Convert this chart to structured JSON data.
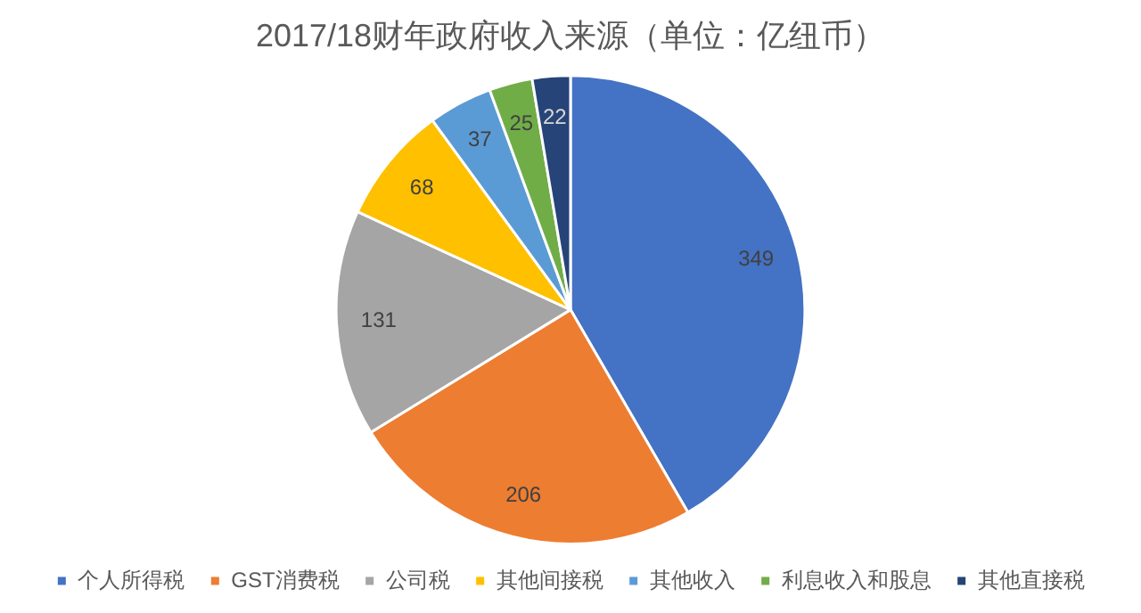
{
  "chart_data": {
    "type": "pie",
    "title": "2017/18财年政府收入来源（单位：亿纽币）",
    "categories": [
      "个人所得税",
      "GST消费税",
      "公司税",
      "其他间接税",
      "其他收入",
      "利息收入和股息",
      "其他直接税"
    ],
    "values": [
      349,
      206,
      131,
      68,
      37,
      25,
      22
    ],
    "colors": [
      "#4472c4",
      "#ed7d31",
      "#a5a5a5",
      "#ffc000",
      "#5b9bd5",
      "#70ad47",
      "#264478"
    ],
    "data_labels": true,
    "legend": "bottom"
  }
}
